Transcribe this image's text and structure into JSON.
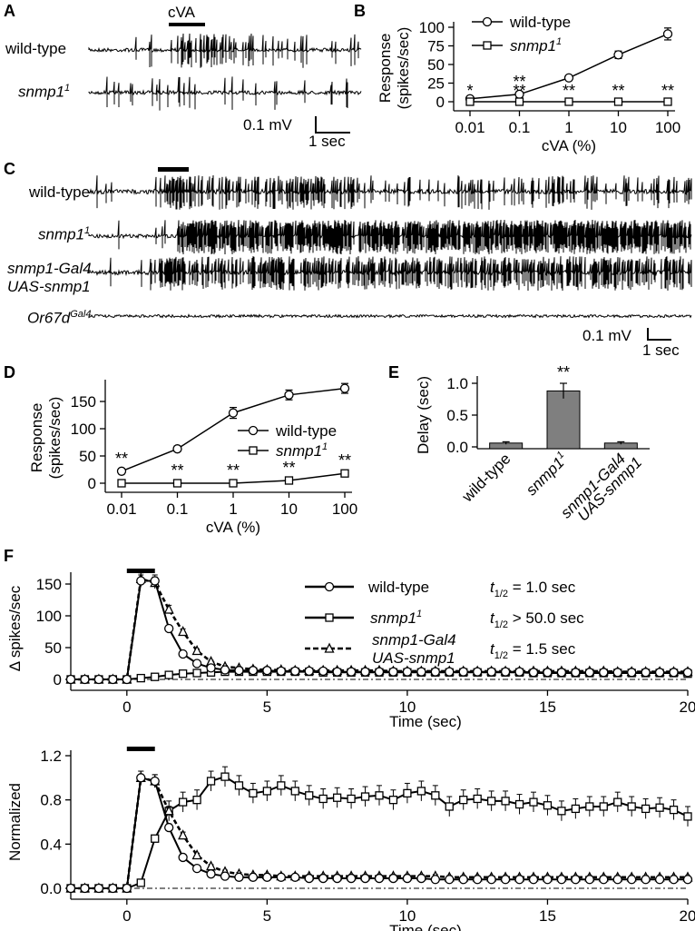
{
  "panels": {
    "a": {
      "letter": "A",
      "stimulus": "cVA",
      "traces": [
        {
          "label": "wild-type",
          "italic": false
        },
        {
          "label": "snmp1",
          "sup": "1",
          "italic": true
        }
      ],
      "scale": {
        "voltage": "0.1 mV",
        "time": "1 sec"
      }
    },
    "c": {
      "letter": "C",
      "traces": [
        {
          "label": "wild-type",
          "italic": false
        },
        {
          "label": "snmp1",
          "sup": "1",
          "italic": true
        },
        {
          "label": "snmp1-Gal4",
          "line2": "UAS-snmp1",
          "italic": true
        },
        {
          "label": "Or67d",
          "sup": "Gal4",
          "italic": true
        }
      ],
      "scale": {
        "voltage": "0.1 mV",
        "time": "1 sec"
      }
    },
    "b": {
      "letter": "B"
    },
    "d": {
      "letter": "D"
    },
    "e": {
      "letter": "E"
    },
    "f": {
      "letter": "F"
    }
  },
  "chart_data": [
    {
      "id": "B",
      "type": "line",
      "x": [
        "0.01",
        "0.1",
        "1",
        "10",
        "100"
      ],
      "xlabel": "cVA (%)",
      "ylabel": [
        "Response",
        "(spikes/sec)"
      ],
      "ylim": [
        0,
        100
      ],
      "yticks": [
        0,
        25,
        50,
        75,
        100
      ],
      "legend": "top-left",
      "series": [
        {
          "name": "wild-type",
          "marker": "circle",
          "values": [
            4,
            10,
            32,
            63,
            91
          ],
          "err": [
            3,
            3,
            3,
            5,
            8
          ]
        },
        {
          "name": "snmp1",
          "name_sup": "1",
          "italic": true,
          "marker": "square",
          "values": [
            0,
            0,
            0,
            0,
            0
          ],
          "err": [
            0,
            0,
            0,
            0,
            0
          ]
        }
      ],
      "annotations": [
        "*",
        "**",
        "**",
        "**",
        "**"
      ],
      "annotations_top": [
        "",
        "**",
        "",
        "",
        ""
      ]
    },
    {
      "id": "D",
      "type": "line",
      "x": [
        "0.01",
        "0.1",
        "1",
        "10",
        "100"
      ],
      "xlabel": "cVA (%)",
      "ylabel": [
        "Response",
        "(spikes/sec)"
      ],
      "ylim": [
        0,
        180
      ],
      "yticks": [
        0,
        50,
        100,
        150
      ],
      "legend": "center-right",
      "series": [
        {
          "name": "wild-type",
          "marker": "circle",
          "values": [
            22,
            63,
            129,
            162,
            174
          ],
          "err": [
            3,
            5,
            10,
            9,
            9
          ]
        },
        {
          "name": "snmp1",
          "name_sup": "1",
          "italic": true,
          "marker": "square",
          "values": [
            0,
            0,
            0,
            5,
            18
          ],
          "err": [
            1,
            1,
            1,
            2,
            3
          ]
        }
      ],
      "annotations": [
        "**",
        "**",
        "**",
        "**",
        "**"
      ]
    },
    {
      "id": "E",
      "type": "bar",
      "categories": [
        "wild-type",
        "snmp1",
        "snmp1-Gal4 UAS-snmp1"
      ],
      "category_lines": [
        [
          "wild-type"
        ],
        [
          "snmp1"
        ],
        [
          "snmp1-Gal4",
          "UAS-snmp1"
        ]
      ],
      "values": [
        0.06,
        0.88,
        0.06
      ],
      "err": [
        0.02,
        0.12,
        0.02
      ],
      "ylabel": "Delay (sec)",
      "ylim": [
        0,
        1.0
      ],
      "yticks": [
        "0.0",
        "0.5",
        "1.0"
      ],
      "annotations": [
        "",
        "**",
        ""
      ],
      "color": "#7f7f7f"
    },
    {
      "id": "F-top",
      "type": "line",
      "ylabel": "Δ spikes/sec",
      "xlabel": "Time (sec)",
      "xlim": [
        -2,
        20
      ],
      "xticks": [
        0,
        5,
        10,
        15,
        20
      ],
      "ylim": [
        0,
        160
      ],
      "yticks": [
        0,
        50,
        100,
        150
      ],
      "stimulus": [
        0,
        1
      ],
      "series": [
        {
          "name": "wild-type",
          "marker": "circle",
          "t_half": "t1/2 = 1.0 sec",
          "x": [
            -2,
            -1.5,
            -1,
            -0.5,
            0,
            0.5,
            1,
            1.5,
            2,
            2.5,
            3,
            3.5,
            4,
            4.5,
            5,
            5.5,
            6,
            6.5,
            7,
            7.5,
            8,
            8.5,
            9,
            9.5,
            10,
            10.5,
            11,
            11.5,
            12,
            12.5,
            13,
            13.5,
            14,
            14.5,
            15,
            15.5,
            16,
            16.5,
            17,
            17.5,
            18,
            18.5,
            19,
            19.5,
            20
          ],
          "values": [
            0,
            0,
            0,
            0,
            0,
            155,
            155,
            80,
            40,
            25,
            18,
            15,
            14,
            14,
            14,
            13,
            13,
            13,
            13,
            12,
            12,
            12,
            12,
            12,
            12,
            12,
            12,
            12,
            12,
            12,
            12,
            12,
            12,
            11,
            11,
            11,
            11,
            11,
            11,
            11,
            11,
            11,
            11,
            11,
            11
          ]
        },
        {
          "name": "snmp1",
          "name_sup": "1",
          "italic": true,
          "marker": "square",
          "t_half": "t1/2 > 50.0 sec",
          "x": [
            -2,
            -1.5,
            -1,
            -0.5,
            0,
            0.5,
            1,
            1.5,
            2,
            2.5,
            3,
            3.5,
            4,
            4.5,
            5,
            5.5,
            6,
            6.5,
            7,
            7.5,
            8,
            8.5,
            9,
            9.5,
            10,
            10.5,
            11,
            11.5,
            12,
            12.5,
            13,
            13.5,
            14,
            14.5,
            15,
            15.5,
            16,
            16.5,
            17,
            17.5,
            18,
            18.5,
            19,
            19.5,
            20
          ],
          "values": [
            0,
            0,
            0,
            0,
            0,
            2,
            4,
            7,
            9,
            10,
            11,
            12,
            12,
            12,
            12,
            12,
            12,
            12,
            11,
            11,
            11,
            11,
            11,
            11,
            11,
            11,
            11,
            11,
            11,
            11,
            11,
            11,
            11,
            10,
            10,
            10,
            10,
            10,
            10,
            10,
            10,
            10,
            10,
            10,
            9
          ]
        },
        {
          "name": "snmp1-Gal4 UAS-snmp1",
          "name_lines": [
            "snmp1-Gal4",
            "UAS-snmp1"
          ],
          "italic": true,
          "marker": "triangle",
          "dashed": true,
          "t_half": "t1/2 = 1.5 sec",
          "x": [
            -2,
            -1.5,
            -1,
            -0.5,
            0,
            0.5,
            1,
            1.5,
            2,
            2.5,
            3,
            3.5,
            4,
            4.5,
            5,
            5.5,
            6,
            6.5,
            7,
            7.5,
            8,
            8.5,
            9,
            9.5,
            10,
            10.5,
            11,
            11.5,
            12,
            12.5,
            13,
            13.5,
            14,
            14.5,
            15,
            15.5,
            16,
            16.5,
            17,
            17.5,
            18,
            18.5,
            19,
            19.5,
            20
          ],
          "values": [
            0,
            0,
            0,
            0,
            0,
            158,
            152,
            110,
            75,
            45,
            28,
            20,
            18,
            16,
            15,
            15,
            14,
            14,
            14,
            14,
            14,
            14,
            14,
            13,
            13,
            13,
            13,
            13,
            13,
            13,
            13,
            13,
            13,
            13,
            13,
            13,
            13,
            13,
            13,
            12,
            12,
            12,
            12,
            12,
            12
          ]
        }
      ],
      "legend_labels": {
        "t_sub": "1/2"
      }
    },
    {
      "id": "F-bottom",
      "type": "line",
      "ylabel": "Normalized",
      "xlabel": "Time (sec)",
      "xlim": [
        -2,
        20
      ],
      "xticks": [
        0,
        5,
        10,
        15,
        20
      ],
      "ylim": [
        0,
        1.2
      ],
      "yticks": [
        "0.0",
        "0.4",
        "0.8",
        "1.2"
      ],
      "stimulus": [
        0,
        1
      ],
      "series": [
        {
          "name": "wild-type",
          "marker": "circle",
          "x": [
            -2,
            -1.5,
            -1,
            -0.5,
            0,
            0.5,
            1,
            1.5,
            2,
            2.5,
            3,
            3.5,
            4,
            4.5,
            5,
            5.5,
            6,
            6.5,
            7,
            7.5,
            8,
            8.5,
            9,
            9.5,
            10,
            10.5,
            11,
            11.5,
            12,
            12.5,
            13,
            13.5,
            14,
            14.5,
            15,
            15.5,
            16,
            16.5,
            17,
            17.5,
            18,
            18.5,
            19,
            19.5,
            20
          ],
          "values": [
            0,
            0,
            0,
            0,
            0,
            1.0,
            0.97,
            0.55,
            0.28,
            0.18,
            0.13,
            0.11,
            0.1,
            0.1,
            0.1,
            0.1,
            0.1,
            0.09,
            0.09,
            0.09,
            0.09,
            0.09,
            0.09,
            0.09,
            0.09,
            0.09,
            0.08,
            0.08,
            0.08,
            0.08,
            0.08,
            0.08,
            0.08,
            0.08,
            0.08,
            0.08,
            0.08,
            0.08,
            0.08,
            0.08,
            0.08,
            0.08,
            0.08,
            0.08,
            0.08
          ]
        },
        {
          "name": "snmp1",
          "name_sup": "1",
          "italic": true,
          "marker": "square",
          "x": [
            -2,
            -1.5,
            -1,
            -0.5,
            0,
            0.5,
            1,
            1.5,
            2,
            2.5,
            3,
            3.5,
            4,
            4.5,
            5,
            5.5,
            6,
            6.5,
            7,
            7.5,
            8,
            8.5,
            9,
            9.5,
            10,
            10.5,
            11,
            11.5,
            12,
            12.5,
            13,
            13.5,
            14,
            14.5,
            15,
            15.5,
            16,
            16.5,
            17,
            17.5,
            18,
            18.5,
            19,
            19.5,
            20
          ],
          "values": [
            0,
            0,
            0,
            0,
            0,
            0.05,
            0.45,
            0.7,
            0.78,
            0.8,
            0.97,
            1.01,
            0.93,
            0.86,
            0.88,
            0.93,
            0.88,
            0.84,
            0.81,
            0.82,
            0.81,
            0.83,
            0.84,
            0.8,
            0.86,
            0.88,
            0.84,
            0.74,
            0.8,
            0.81,
            0.79,
            0.79,
            0.76,
            0.78,
            0.75,
            0.7,
            0.72,
            0.74,
            0.74,
            0.78,
            0.74,
            0.72,
            0.73,
            0.71,
            0.65
          ]
        },
        {
          "name": "snmp1-Gal4 UAS-snmp1",
          "italic": true,
          "marker": "triangle",
          "dashed": true,
          "x": [
            -2,
            -1.5,
            -1,
            -0.5,
            0,
            0.5,
            1,
            1.5,
            2,
            2.5,
            3,
            3.5,
            4,
            4.5,
            5,
            5.5,
            6,
            6.5,
            7,
            7.5,
            8,
            8.5,
            9,
            9.5,
            10,
            10.5,
            11,
            11.5,
            12,
            12.5,
            13,
            13.5,
            14,
            14.5,
            15,
            15.5,
            16,
            16.5,
            17,
            17.5,
            18,
            18.5,
            19,
            19.5,
            20
          ],
          "values": [
            0,
            0,
            0,
            0,
            0,
            1.0,
            0.97,
            0.7,
            0.48,
            0.3,
            0.2,
            0.15,
            0.13,
            0.12,
            0.12,
            0.11,
            0.11,
            0.11,
            0.11,
            0.11,
            0.11,
            0.11,
            0.11,
            0.11,
            0.11,
            0.11,
            0.11,
            0.1,
            0.1,
            0.1,
            0.1,
            0.1,
            0.1,
            0.1,
            0.1,
            0.1,
            0.1,
            0.1,
            0.1,
            0.1,
            0.1,
            0.1,
            0.1,
            0.1,
            0.1
          ]
        }
      ]
    }
  ]
}
